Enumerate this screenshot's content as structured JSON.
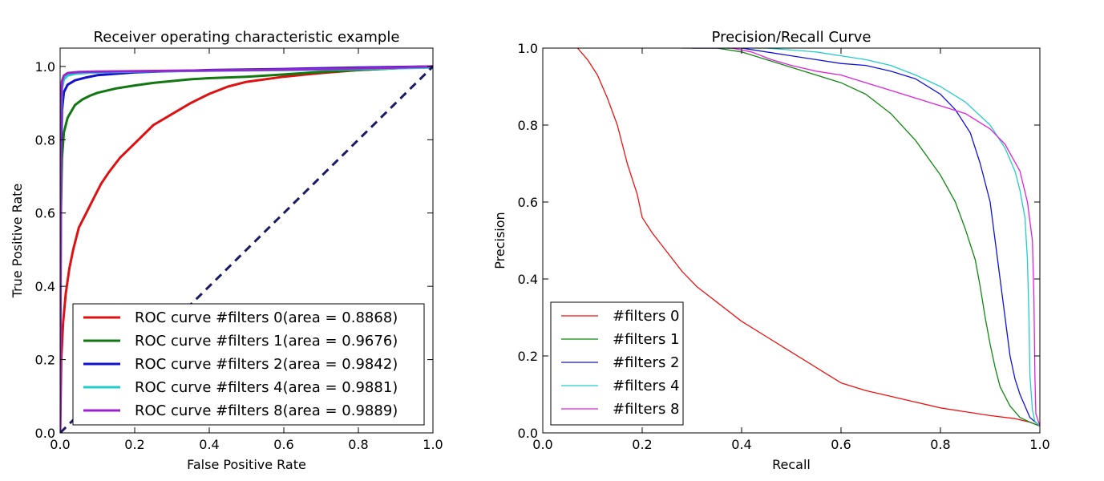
{
  "chart_data": [
    {
      "type": "line",
      "title": "Receiver operating characteristic example",
      "xlabel": "False Positive Rate",
      "ylabel": "True Positive Rate",
      "xlim": [
        0.0,
        1.0
      ],
      "ylim": [
        0.0,
        1.05
      ],
      "xticks": [
        "0.0",
        "0.2",
        "0.4",
        "0.6",
        "0.8",
        "1.0"
      ],
      "xtick_values": [
        0.0,
        0.2,
        0.4,
        0.6,
        0.8,
        1.0
      ],
      "yticks": [
        "0.0",
        "0.2",
        "0.4",
        "0.6",
        "0.8",
        "1.0"
      ],
      "ytick_values": [
        0.0,
        0.2,
        0.4,
        0.6,
        0.8,
        1.0
      ],
      "legend_position": "lower-right",
      "series": [
        {
          "name": "ROC curve #filters 0(area = 0.8868)",
          "color": "#dd1111",
          "points": [
            [
              0.0,
              0.0
            ],
            [
              0.003,
              0.2
            ],
            [
              0.008,
              0.3
            ],
            [
              0.015,
              0.38
            ],
            [
              0.025,
              0.45
            ],
            [
              0.035,
              0.5
            ],
            [
              0.05,
              0.56
            ],
            [
              0.07,
              0.6
            ],
            [
              0.09,
              0.64
            ],
            [
              0.11,
              0.68
            ],
            [
              0.13,
              0.71
            ],
            [
              0.16,
              0.75
            ],
            [
              0.2,
              0.79
            ],
            [
              0.25,
              0.84
            ],
            [
              0.3,
              0.87
            ],
            [
              0.35,
              0.9
            ],
            [
              0.4,
              0.925
            ],
            [
              0.45,
              0.945
            ],
            [
              0.5,
              0.958
            ],
            [
              0.6,
              0.972
            ],
            [
              0.7,
              0.982
            ],
            [
              0.8,
              0.99
            ],
            [
              0.9,
              0.995
            ],
            [
              1.0,
              1.0
            ]
          ]
        },
        {
          "name": "ROC curve #filters 1(area = 0.9676)",
          "color": "#117711",
          "points": [
            [
              0.0,
              0.0
            ],
            [
              0.002,
              0.6
            ],
            [
              0.005,
              0.75
            ],
            [
              0.01,
              0.82
            ],
            [
              0.02,
              0.86
            ],
            [
              0.04,
              0.895
            ],
            [
              0.06,
              0.91
            ],
            [
              0.08,
              0.92
            ],
            [
              0.1,
              0.928
            ],
            [
              0.15,
              0.94
            ],
            [
              0.2,
              0.948
            ],
            [
              0.25,
              0.955
            ],
            [
              0.3,
              0.96
            ],
            [
              0.35,
              0.965
            ],
            [
              0.4,
              0.968
            ],
            [
              0.5,
              0.972
            ],
            [
              0.6,
              0.978
            ],
            [
              0.7,
              0.985
            ],
            [
              0.8,
              0.99
            ],
            [
              0.9,
              0.995
            ],
            [
              1.0,
              1.0
            ]
          ]
        },
        {
          "name": "ROC curve #filters 2(area = 0.9842)",
          "color": "#1111cc",
          "points": [
            [
              0.0,
              0.0
            ],
            [
              0.002,
              0.75
            ],
            [
              0.005,
              0.88
            ],
            [
              0.01,
              0.93
            ],
            [
              0.02,
              0.95
            ],
            [
              0.04,
              0.962
            ],
            [
              0.07,
              0.97
            ],
            [
              0.1,
              0.976
            ],
            [
              0.15,
              0.98
            ],
            [
              0.2,
              0.984
            ],
            [
              0.3,
              0.987
            ],
            [
              0.4,
              0.99
            ],
            [
              0.6,
              0.993
            ],
            [
              0.8,
              0.997
            ],
            [
              1.0,
              1.0
            ]
          ]
        },
        {
          "name": "ROC curve #filters 4(area = 0.9881)",
          "color": "#22cccc",
          "points": [
            [
              0.0,
              0.0
            ],
            [
              0.002,
              0.85
            ],
            [
              0.005,
              0.94
            ],
            [
              0.01,
              0.965
            ],
            [
              0.02,
              0.975
            ],
            [
              0.04,
              0.98
            ],
            [
              0.08,
              0.983
            ],
            [
              0.2,
              0.986
            ],
            [
              0.4,
              0.988
            ],
            [
              0.6,
              0.99
            ],
            [
              0.8,
              0.993
            ],
            [
              1.0,
              0.997
            ]
          ]
        },
        {
          "name": "ROC curve #filters 8(area = 0.9889)",
          "color": "#9922cc",
          "points": [
            [
              0.0,
              0.0
            ],
            [
              0.002,
              0.9
            ],
            [
              0.005,
              0.96
            ],
            [
              0.01,
              0.975
            ],
            [
              0.02,
              0.982
            ],
            [
              0.05,
              0.985
            ],
            [
              0.1,
              0.986
            ],
            [
              0.3,
              0.988
            ],
            [
              0.5,
              0.99
            ],
            [
              0.7,
              0.993
            ],
            [
              0.9,
              0.997
            ],
            [
              1.0,
              1.0
            ]
          ]
        },
        {
          "name": "",
          "color": "#1a1a66",
          "dashed": true,
          "points": [
            [
              0.0,
              0.0
            ],
            [
              1.0,
              1.0
            ]
          ]
        }
      ]
    },
    {
      "type": "line",
      "title": "Precision/Recall Curve",
      "xlabel": "Recall",
      "ylabel": "Precision",
      "xlim": [
        0.0,
        1.0
      ],
      "ylim": [
        0.0,
        1.0
      ],
      "xticks": [
        "0.0",
        "0.2",
        "0.4",
        "0.6",
        "0.8",
        "1.0"
      ],
      "xtick_values": [
        0.0,
        0.2,
        0.4,
        0.6,
        0.8,
        1.0
      ],
      "yticks": [
        "0.0",
        "0.2",
        "0.4",
        "0.6",
        "0.8",
        "1.0"
      ],
      "ytick_values": [
        0.0,
        0.2,
        0.4,
        0.6,
        0.8,
        1.0
      ],
      "legend_position": "lower-left",
      "series": [
        {
          "name": "#filters 0",
          "color": "#ee1111",
          "points": [
            [
              0.07,
              1.0
            ],
            [
              0.09,
              0.97
            ],
            [
              0.11,
              0.93
            ],
            [
              0.13,
              0.87
            ],
            [
              0.15,
              0.8
            ],
            [
              0.17,
              0.7
            ],
            [
              0.19,
              0.62
            ],
            [
              0.2,
              0.56
            ],
            [
              0.22,
              0.52
            ],
            [
              0.25,
              0.47
            ],
            [
              0.28,
              0.42
            ],
            [
              0.31,
              0.38
            ],
            [
              0.35,
              0.34
            ],
            [
              0.4,
              0.29
            ],
            [
              0.45,
              0.25
            ],
            [
              0.5,
              0.21
            ],
            [
              0.55,
              0.17
            ],
            [
              0.6,
              0.13
            ],
            [
              0.65,
              0.11
            ],
            [
              0.7,
              0.095
            ],
            [
              0.75,
              0.08
            ],
            [
              0.8,
              0.065
            ],
            [
              0.85,
              0.055
            ],
            [
              0.9,
              0.045
            ],
            [
              0.95,
              0.037
            ],
            [
              0.98,
              0.028
            ],
            [
              1.0,
              0.018
            ]
          ]
        },
        {
          "name": "#filters 1",
          "color": "#118811",
          "points": [
            [
              0.28,
              1.0
            ],
            [
              0.35,
              1.0
            ],
            [
              0.4,
              0.99
            ],
            [
              0.45,
              0.97
            ],
            [
              0.5,
              0.95
            ],
            [
              0.55,
              0.93
            ],
            [
              0.6,
              0.91
            ],
            [
              0.65,
              0.88
            ],
            [
              0.7,
              0.83
            ],
            [
              0.75,
              0.76
            ],
            [
              0.8,
              0.67
            ],
            [
              0.83,
              0.6
            ],
            [
              0.85,
              0.53
            ],
            [
              0.87,
              0.45
            ],
            [
              0.88,
              0.38
            ],
            [
              0.89,
              0.3
            ],
            [
              0.9,
              0.23
            ],
            [
              0.91,
              0.17
            ],
            [
              0.92,
              0.12
            ],
            [
              0.94,
              0.07
            ],
            [
              0.96,
              0.04
            ],
            [
              0.98,
              0.028
            ],
            [
              1.0,
              0.018
            ]
          ]
        },
        {
          "name": "#filters 2",
          "color": "#1111dd",
          "points": [
            [
              0.3,
              1.0
            ],
            [
              0.4,
              1.0
            ],
            [
              0.45,
              0.99
            ],
            [
              0.5,
              0.98
            ],
            [
              0.55,
              0.97
            ],
            [
              0.6,
              0.96
            ],
            [
              0.65,
              0.955
            ],
            [
              0.7,
              0.94
            ],
            [
              0.75,
              0.92
            ],
            [
              0.8,
              0.88
            ],
            [
              0.83,
              0.84
            ],
            [
              0.86,
              0.78
            ],
            [
              0.88,
              0.7
            ],
            [
              0.9,
              0.6
            ],
            [
              0.91,
              0.5
            ],
            [
              0.92,
              0.4
            ],
            [
              0.93,
              0.3
            ],
            [
              0.94,
              0.2
            ],
            [
              0.95,
              0.14
            ],
            [
              0.96,
              0.1
            ],
            [
              0.97,
              0.07
            ],
            [
              0.98,
              0.04
            ],
            [
              1.0,
              0.018
            ]
          ]
        },
        {
          "name": "#filters 4",
          "color": "#22cccc",
          "points": [
            [
              0.3,
              1.0
            ],
            [
              0.45,
              1.0
            ],
            [
              0.5,
              0.995
            ],
            [
              0.55,
              0.99
            ],
            [
              0.6,
              0.98
            ],
            [
              0.65,
              0.97
            ],
            [
              0.7,
              0.955
            ],
            [
              0.75,
              0.93
            ],
            [
              0.8,
              0.9
            ],
            [
              0.85,
              0.86
            ],
            [
              0.9,
              0.8
            ],
            [
              0.93,
              0.74
            ],
            [
              0.95,
              0.68
            ],
            [
              0.96,
              0.63
            ],
            [
              0.97,
              0.56
            ],
            [
              0.975,
              0.45
            ],
            [
              0.978,
              0.3
            ],
            [
              0.98,
              0.15
            ],
            [
              0.985,
              0.06
            ],
            [
              0.99,
              0.03
            ],
            [
              1.0,
              0.018
            ]
          ]
        },
        {
          "name": "#filters 8",
          "color": "#dd22dd",
          "points": [
            [
              0.3,
              1.0
            ],
            [
              0.38,
              1.0
            ],
            [
              0.42,
              0.99
            ],
            [
              0.46,
              0.97
            ],
            [
              0.5,
              0.955
            ],
            [
              0.55,
              0.94
            ],
            [
              0.6,
              0.93
            ],
            [
              0.65,
              0.91
            ],
            [
              0.7,
              0.89
            ],
            [
              0.75,
              0.87
            ],
            [
              0.8,
              0.85
            ],
            [
              0.85,
              0.83
            ],
            [
              0.9,
              0.79
            ],
            [
              0.93,
              0.75
            ],
            [
              0.96,
              0.68
            ],
            [
              0.975,
              0.6
            ],
            [
              0.985,
              0.5
            ],
            [
              0.988,
              0.35
            ],
            [
              0.99,
              0.15
            ],
            [
              0.992,
              0.05
            ],
            [
              1.0,
              0.018
            ]
          ]
        }
      ]
    }
  ]
}
